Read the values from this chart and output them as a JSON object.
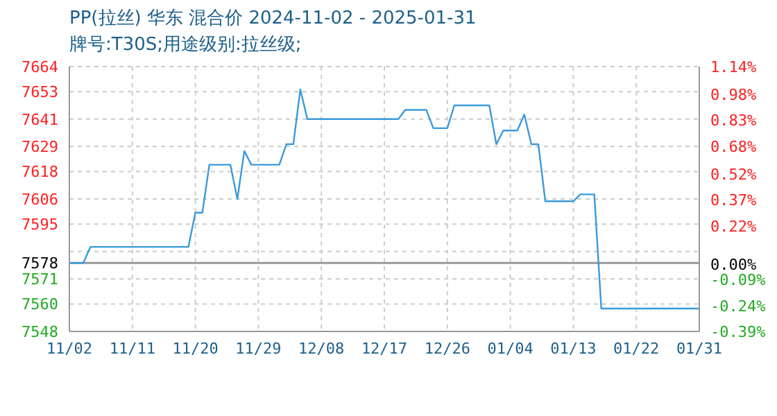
{
  "chart_data": {
    "type": "line",
    "title": "PP(拉丝) 华东 混合价 2024-11-02 - 2025-01-31",
    "subtitle": "牌号:T30S;用途级别:拉丝级;",
    "x": [
      "2024-11-02",
      "2024-11-04",
      "2024-11-05",
      "2024-11-19",
      "2024-11-20",
      "2024-11-21",
      "2024-11-22",
      "2024-11-25",
      "2024-11-26",
      "2024-11-27",
      "2024-11-28",
      "2024-12-02",
      "2024-12-03",
      "2024-12-04",
      "2024-12-05",
      "2024-12-06",
      "2024-12-19",
      "2024-12-20",
      "2024-12-23",
      "2024-12-24",
      "2024-12-26",
      "2024-12-27",
      "2025-01-01",
      "2025-01-02",
      "2025-01-03",
      "2025-01-05",
      "2025-01-06",
      "2025-01-07",
      "2025-01-08",
      "2025-01-09",
      "2025-01-13",
      "2025-01-14",
      "2025-01-16",
      "2025-01-17",
      "2025-01-31"
    ],
    "series": [
      {
        "color": "#3a9ad9",
        "values": [
          7578,
          7578,
          7585,
          7585,
          7600,
          7600,
          7621,
          7621,
          7606,
          7627,
          7621,
          7621,
          7630,
          7630,
          7654,
          7641,
          7641,
          7645,
          7645,
          7637,
          7637,
          7647,
          7647,
          7630,
          7636,
          7636,
          7643,
          7630,
          7630,
          7605,
          7605,
          7608,
          7608,
          7558,
          7558
        ]
      }
    ],
    "xlim": [
      "2024-11-02",
      "2025-01-31"
    ],
    "xticks": [
      {
        "value": "2024-11-02",
        "label": "11/02"
      },
      {
        "value": "2024-11-11",
        "label": "11/11"
      },
      {
        "value": "2024-11-20",
        "label": "11/20"
      },
      {
        "value": "2024-11-29",
        "label": "11/29"
      },
      {
        "value": "2024-12-08",
        "label": "12/08"
      },
      {
        "value": "2024-12-17",
        "label": "12/17"
      },
      {
        "value": "2024-12-26",
        "label": "12/26"
      },
      {
        "value": "2025-01-04",
        "label": "01/04"
      },
      {
        "value": "2025-01-13",
        "label": "01/13"
      },
      {
        "value": "2025-01-22",
        "label": "01/22"
      },
      {
        "value": "2025-01-31",
        "label": "01/31"
      }
    ],
    "ylim": [
      7548,
      7664
    ],
    "yticks": [
      7548,
      7560,
      7571,
      7578,
      {
        "value": 7583,
        "label": null
      },
      7595,
      7606,
      7618,
      7629,
      7641,
      7653,
      7664
    ],
    "y2lim": [
      -0.39,
      1.14
    ],
    "y2ticks": [
      {
        "value": -0.39,
        "label": "-0.39%"
      },
      {
        "value": -0.24,
        "label": "-0.24%"
      },
      {
        "value": -0.09,
        "label": "-0.09%"
      },
      {
        "value": 0,
        "label": "0.00%"
      },
      {
        "value": 0.22,
        "label": "0.22%"
      },
      {
        "value": 0.37,
        "label": "0.37%"
      },
      {
        "value": 0.52,
        "label": "0.52%"
      },
      {
        "value": 0.68,
        "label": "0.68%"
      },
      {
        "value": 0.83,
        "label": "0.83%"
      },
      {
        "value": 0.98,
        "label": "0.98%"
      },
      {
        "value": 1.14,
        "label": "1.14%"
      }
    ],
    "ref_lines": [
      {
        "axis": "y",
        "value": 7578,
        "color": "#999999"
      }
    ],
    "grid": true,
    "marker": "none",
    "line_style": "solid"
  }
}
